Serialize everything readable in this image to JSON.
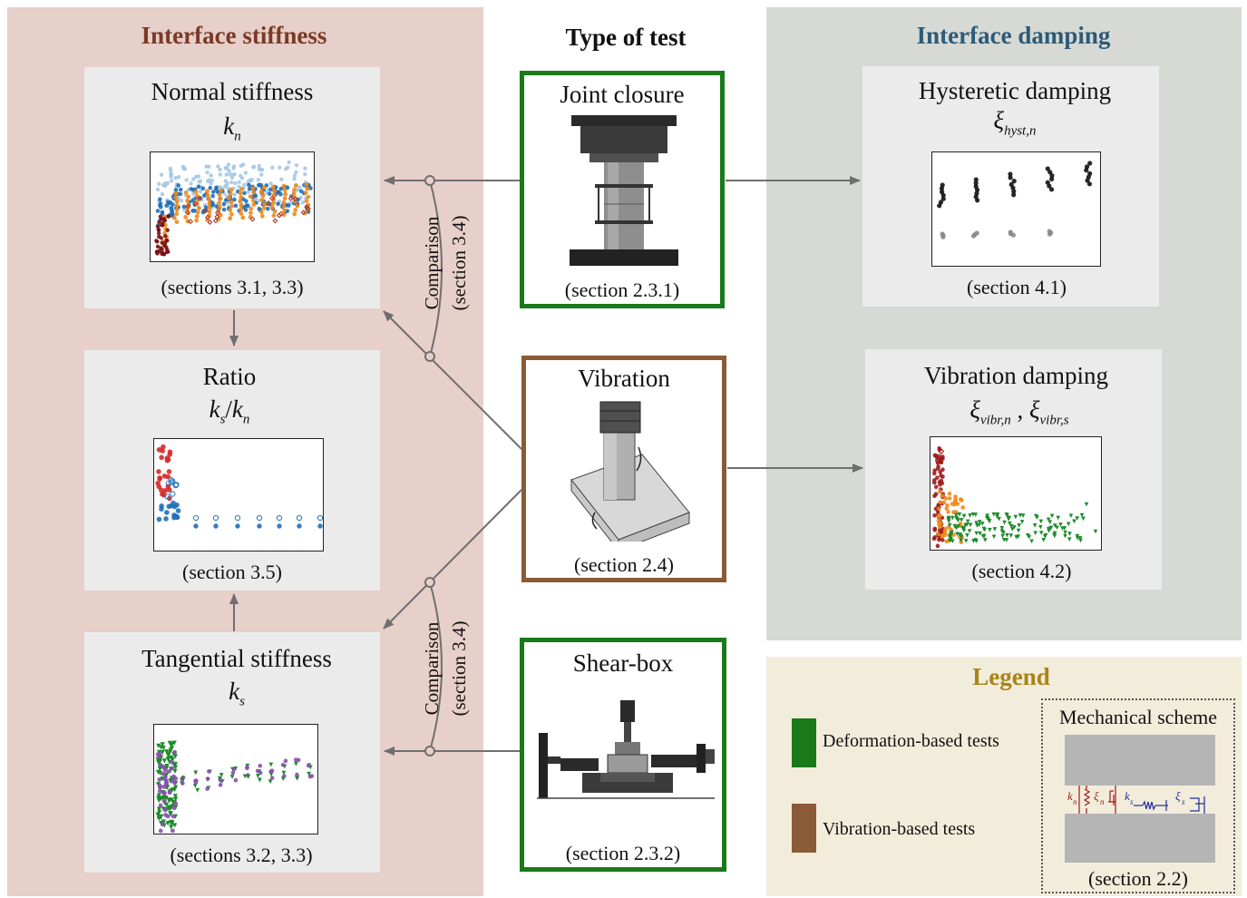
{
  "headers": {
    "stiffness": "Interface stiffness",
    "test_type": "Type of test",
    "damping": "Interface damping"
  },
  "cards": {
    "normal": {
      "title": "Normal stiffness",
      "symbol": "k",
      "symbol_sub": "n",
      "caption": "(sections 3.1, 3.3)"
    },
    "ratio": {
      "title": "Ratio",
      "symbol_a": "k",
      "symbol_a_sub": "s",
      "symbol_slash": "/",
      "symbol_b": "k",
      "symbol_b_sub": "n",
      "caption": "(section 3.5)"
    },
    "tangential": {
      "title": "Tangential stiffness",
      "symbol": "k",
      "symbol_sub": "s",
      "caption": "(sections 3.2, 3.3)"
    },
    "hysteretic": {
      "title": "Hysteretic damping",
      "symbol": "ξ",
      "symbol_sub": "hyst,n",
      "caption": "(section 4.1)"
    },
    "vibration_damping": {
      "title": "Vibration damping",
      "symbol_a": "ξ",
      "symbol_a_sub": "vibr,n",
      "symbol_sep": ",",
      "symbol_b": "ξ",
      "symbol_b_sub": "vibr,s",
      "caption": "(section 4.2)"
    }
  },
  "tests": {
    "joint": {
      "title": "Joint closure",
      "caption": "(section 2.3.1)"
    },
    "vibration": {
      "title": "Vibration",
      "caption": "(section 2.4)"
    },
    "shear": {
      "title": "Shear-box",
      "caption": "(section 2.3.2)"
    }
  },
  "comparison": {
    "line1": "Comparison",
    "line2": "(section 3.4)"
  },
  "legend": {
    "title": "Legend",
    "deformation": "Deformation-based tests",
    "vibration": "Vibration-based tests",
    "scheme_title": "Mechanical scheme",
    "scheme_caption": "(section 2.2)",
    "kn": "k",
    "kn_sub": "n",
    "xin": "ξ",
    "xin_sub": "n",
    "ks": "k",
    "ks_sub": "s",
    "xis": "ξ",
    "xis_sub": "s"
  },
  "colors": {
    "stiffness_header": "#7b3a26",
    "damping_header": "#2d5a78",
    "legend_header": "#a88418",
    "deformation": "#1a7a1a",
    "vibration": "#8b5a36",
    "arrow": "#6f6f6f",
    "normal_series": "#9c1c1c",
    "tangential_series": "#1f2f9c"
  }
}
